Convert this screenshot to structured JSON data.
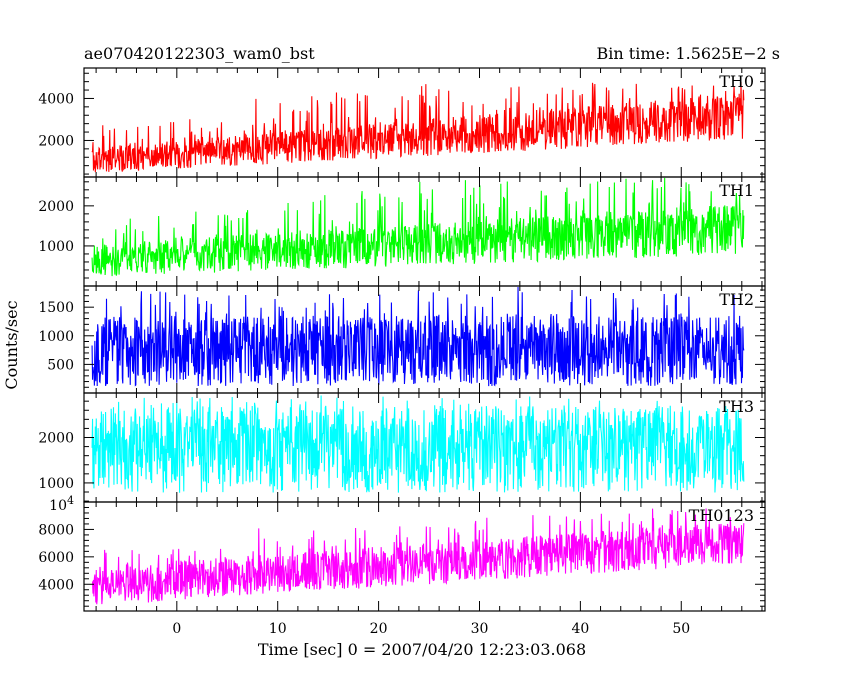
{
  "header": {
    "title": "ae070420122303_wam0_bst",
    "bin_time": "Bin time: 1.5625E−2 s"
  },
  "axes": {
    "xlabel": "Time [sec] 0 = 2007/04/20 12:23:03.068",
    "ylabel": "Counts/sec"
  },
  "chart_data": [
    {
      "type": "line",
      "name": "TH0",
      "color": "#ff0000",
      "x_range": [
        -8.4,
        56.2
      ],
      "xlim": [
        -9.2,
        58.3
      ],
      "ylim": [
        260,
        5450
      ],
      "yticks": [
        2000,
        4000
      ],
      "ytick_labels": [
        "2000",
        "4000"
      ],
      "trend": {
        "x": [
          -8.4,
          56.2
        ],
        "low": [
          430,
          2050
        ],
        "high": [
          1650,
          4300
        ]
      },
      "spikes": [
        3100,
        4450,
        4750,
        4850
      ]
    },
    {
      "type": "line",
      "name": "TH1",
      "color": "#00ff00",
      "x_range": [
        -8.4,
        56.2
      ],
      "xlim": [
        -9.2,
        58.3
      ],
      "ylim": [
        0,
        2720
      ],
      "yticks": [
        1000,
        2000
      ],
      "ytick_labels": [
        "1000",
        "2000"
      ],
      "trend": {
        "x": [
          -8.4,
          56.2
        ],
        "low": [
          220,
          790
        ],
        "high": [
          1050,
          2050
        ]
      },
      "spikes": [
        1900,
        2450,
        2650,
        2700
      ]
    },
    {
      "type": "line",
      "name": "TH2",
      "color": "#0000ff",
      "x_range": [
        -8.4,
        56.2
      ],
      "xlim": [
        -9.2,
        58.3
      ],
      "ylim": [
        0,
        1870
      ],
      "yticks": [
        500,
        1000,
        1500
      ],
      "ytick_labels": [
        "500",
        "1000",
        "1500"
      ],
      "trend": {
        "x": [
          -8.4,
          56.2
        ],
        "low": [
          120,
          120
        ],
        "high": [
          1350,
          1350
        ]
      },
      "spikes": [
        1800,
        1870,
        1860,
        1750
      ]
    },
    {
      "type": "line",
      "name": "TH3",
      "color": "#00ffff",
      "x_range": [
        -8.4,
        56.2
      ],
      "xlim": [
        -9.2,
        58.3
      ],
      "ylim": [
        580,
        2980
      ],
      "yticks": [
        1000,
        2000
      ],
      "ytick_labels": [
        "1000",
        "2000"
      ],
      "trend": {
        "x": [
          -8.4,
          56.2
        ],
        "low": [
          780,
          780
        ],
        "high": [
          2700,
          2700
        ]
      },
      "spikes": [
        2950,
        2980,
        2960,
        2900
      ]
    },
    {
      "type": "line",
      "name": "TH0123",
      "color": "#ff00ff",
      "x_range": [
        -8.4,
        56.2
      ],
      "xlim": [
        -9.2,
        58.3
      ],
      "ylim": [
        2050,
        10000
      ],
      "yticks": [
        4000,
        6000,
        8000
      ],
      "ytick_labels": [
        "4000",
        "6000",
        "8000"
      ],
      "ytop_label": "10",
      "ytop_exponent": "4",
      "trend": {
        "x": [
          -8.4,
          56.2
        ],
        "low": [
          2400,
          5500
        ],
        "high": [
          5300,
          8600
        ]
      },
      "spikes": [
        6600,
        8300,
        9300,
        9600
      ]
    }
  ],
  "xaxis": {
    "ticks": [
      0,
      10,
      20,
      30,
      40,
      50
    ],
    "tick_labels": [
      "0",
      "10",
      "20",
      "30",
      "40",
      "50"
    ],
    "minor_step": 2
  }
}
